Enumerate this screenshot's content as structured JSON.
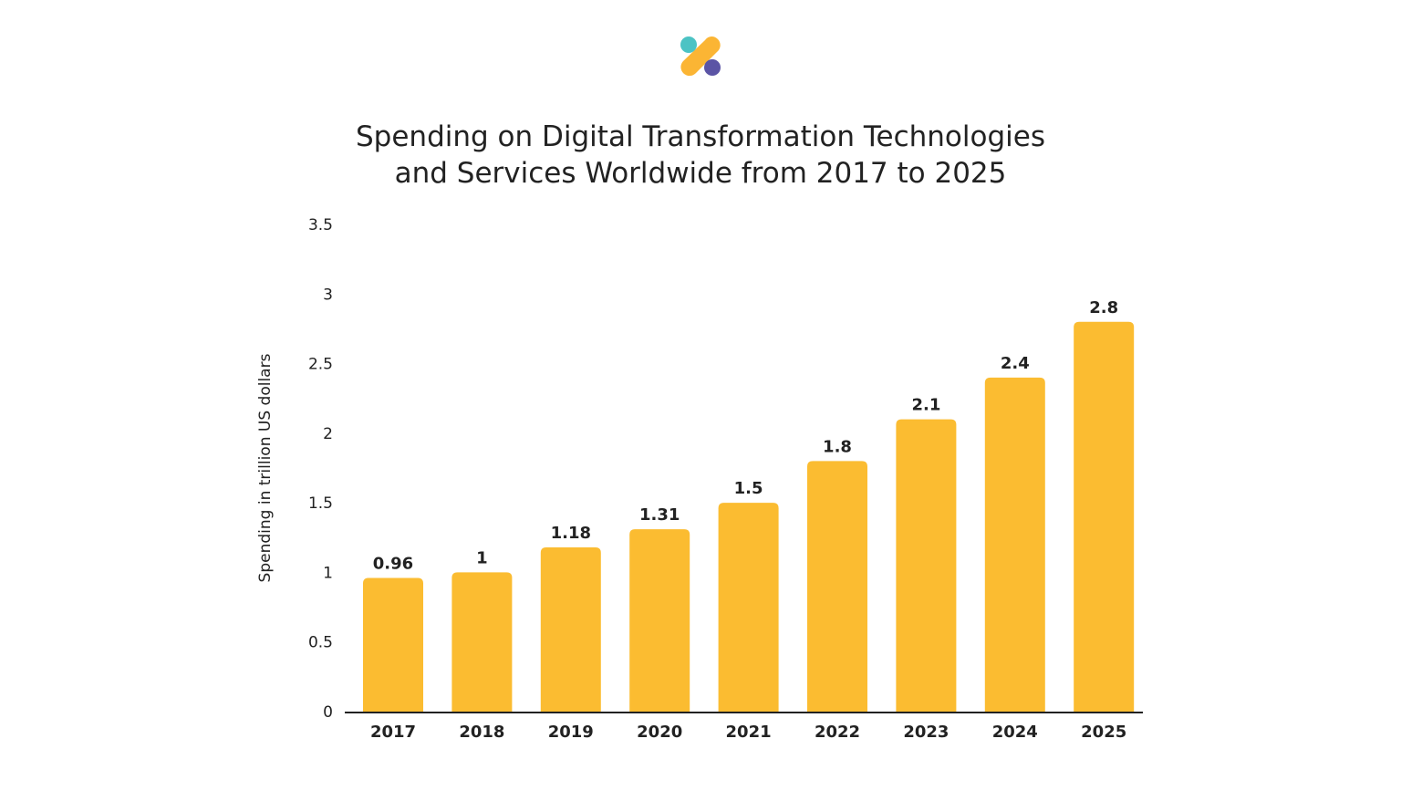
{
  "logo": {
    "colors": [
      "#4cc3c4",
      "#fbb534",
      "#5b54a5"
    ]
  },
  "chart_data": {
    "type": "bar",
    "title": "Spending on Digital Transformation Technologies and Services Worldwide from 2017 to 2025",
    "title_lines": [
      "Spending on Digital Transformation Technologies",
      "and Services Worldwide from 2017 to 2025"
    ],
    "xlabel": "",
    "ylabel": "Spending in trillion US dollars",
    "categories": [
      "2017",
      "2018",
      "2019",
      "2020",
      "2021",
      "2022",
      "2023",
      "2024",
      "2025"
    ],
    "values": [
      0.96,
      1,
      1.18,
      1.31,
      1.5,
      1.8,
      2.1,
      2.4,
      2.8
    ],
    "data_labels": [
      "0.96",
      "1",
      "1.18",
      "1.31",
      "1.5",
      "1.8",
      "2.1",
      "2.4",
      "2.8"
    ],
    "ylim": [
      0,
      3.5
    ],
    "yticks": [
      "0",
      "0.5",
      "1",
      "1.5",
      "2",
      "2.5",
      "3",
      "3.5"
    ],
    "grid": false,
    "bar_color": "#fbbc31",
    "axis_color": "#222222"
  }
}
